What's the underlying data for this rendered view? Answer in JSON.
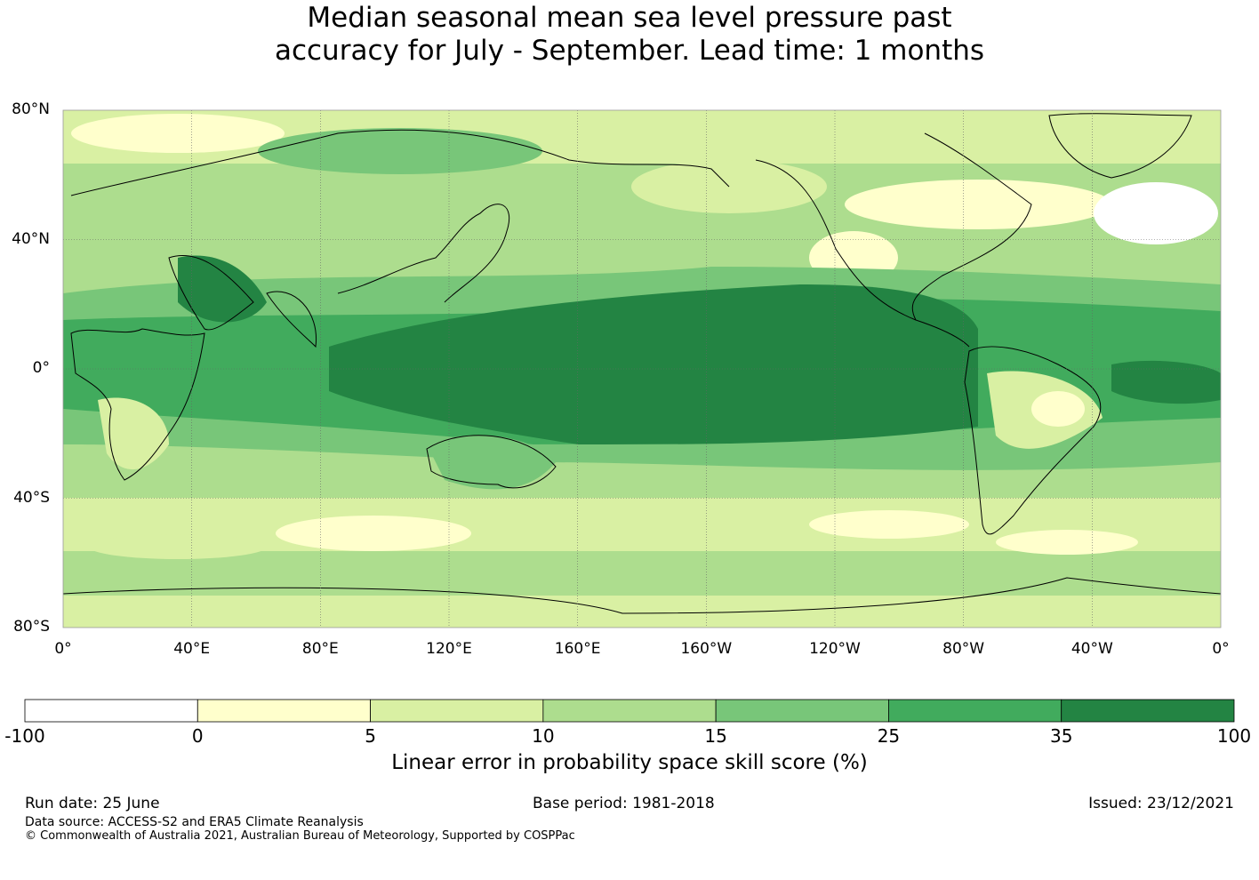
{
  "title": {
    "line1": "Median seasonal mean sea level pressure past",
    "line2": "accuracy for July - September. Lead time: 1 months"
  },
  "map": {
    "lat_labels": [
      "80°N",
      "40°N",
      "0°",
      "40°S",
      "80°S"
    ],
    "lon_labels": [
      "0°",
      "40°E",
      "80°E",
      "120°E",
      "160°E",
      "160°W",
      "120°W",
      "80°W",
      "40°W",
      "0°"
    ],
    "gridlines": true
  },
  "colorbar": {
    "ticks": [
      "-100",
      "0",
      "5",
      "10",
      "15",
      "25",
      "35",
      "100"
    ],
    "colors": [
      "#ffffff",
      "#ffffcc",
      "#d9f0a3",
      "#addd8e",
      "#78c679",
      "#41ab5d",
      "#238443"
    ],
    "label": "Linear error in probability space skill score (%)"
  },
  "footer": {
    "run_date": "Run date: 25 June",
    "base_period": "Base period: 1981-2018",
    "issued": "Issued: 23/12/2021",
    "data_source": "Data source: ACCESS-S2 and ERA5 Climate Reanalysis",
    "copyright": "© Commonwealth of Australia 2021, Australian Bureau of Meteorology, Supported by COSPPac"
  }
}
